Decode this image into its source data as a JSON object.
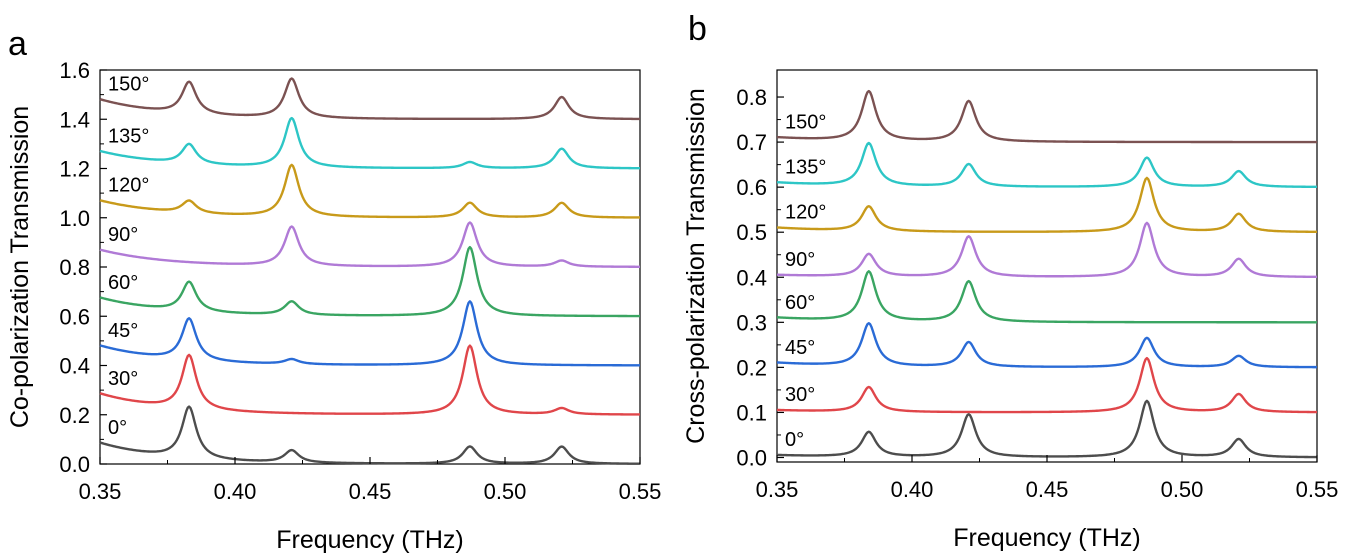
{
  "chart_data": [
    {
      "panel": "a",
      "type": "line",
      "xlabel": "Frequency (THz)",
      "ylabel": "Co-polarization Transmission",
      "xlim": [
        0.35,
        0.55
      ],
      "ylim": [
        0.0,
        1.6
      ],
      "xticks": [
        "0.35",
        "0.40",
        "0.45",
        "0.50",
        "0.55"
      ],
      "yticks": [
        "0.0",
        "0.2",
        "0.4",
        "0.6",
        "0.8",
        "1.0",
        "1.2",
        "1.4",
        "1.6"
      ],
      "grid": false,
      "series": [
        {
          "name": "0°",
          "color": "#4d4d4d",
          "baseline": 0.0,
          "start": 0.085,
          "peaks": [
            [
              0.383,
              0.21
            ],
            [
              0.421,
              0.05
            ],
            [
              0.487,
              0.07
            ],
            [
              0.521,
              0.07
            ]
          ]
        },
        {
          "name": "30°",
          "color": "#e0464a",
          "baseline": 0.2,
          "start": 0.285,
          "peaks": [
            [
              0.383,
              0.42
            ],
            [
              0.487,
              0.48
            ],
            [
              0.521,
              0.225
            ]
          ]
        },
        {
          "name": "45°",
          "color": "#2a6bd6",
          "baseline": 0.4,
          "start": 0.48,
          "peaks": [
            [
              0.383,
              0.57
            ],
            [
              0.421,
              0.42
            ],
            [
              0.487,
              0.66
            ]
          ]
        },
        {
          "name": "60°",
          "color": "#3aa562",
          "baseline": 0.6,
          "start": 0.675,
          "peaks": [
            [
              0.383,
              0.72
            ],
            [
              0.421,
              0.655
            ],
            [
              0.487,
              0.88
            ]
          ]
        },
        {
          "name": "90°",
          "color": "#b07ad6",
          "baseline": 0.8,
          "start": 0.87,
          "peaks": [
            [
              0.421,
              0.96
            ],
            [
              0.487,
              0.98
            ],
            [
              0.521,
              0.825
            ]
          ]
        },
        {
          "name": "120°",
          "color": "#c89a1a",
          "baseline": 1.0,
          "start": 1.07,
          "peaks": [
            [
              0.383,
              1.05
            ],
            [
              0.421,
              1.21
            ],
            [
              0.487,
              1.06
            ],
            [
              0.521,
              1.06
            ]
          ]
        },
        {
          "name": "135°",
          "color": "#2dc6c6",
          "baseline": 1.2,
          "start": 1.27,
          "peaks": [
            [
              0.383,
              1.28
            ],
            [
              0.421,
              1.4
            ],
            [
              0.487,
              1.225
            ],
            [
              0.521,
              1.28
            ]
          ]
        },
        {
          "name": "150°",
          "color": "#7b5252",
          "baseline": 1.4,
          "start": 1.48,
          "peaks": [
            [
              0.383,
              1.53
            ],
            [
              0.421,
              1.56
            ],
            [
              0.521,
              1.49
            ]
          ]
        }
      ]
    },
    {
      "panel": "b",
      "type": "line",
      "xlabel": "Frequency (THz)",
      "ylabel": "Cross-polarization Transmission",
      "xlim": [
        0.35,
        0.55
      ],
      "ylim": [
        -0.01,
        0.86
      ],
      "xticks": [
        "0.35",
        "0.40",
        "0.45",
        "0.50",
        "0.55"
      ],
      "yticks": [
        "0.0",
        "0.1",
        "0.2",
        "0.3",
        "0.4",
        "0.5",
        "0.6",
        "0.7",
        "0.8"
      ],
      "grid": false,
      "series": [
        {
          "name": "0°",
          "color": "#4d4d4d",
          "baseline": 0.0,
          "start": 0.005,
          "peaks": [
            [
              0.384,
              0.055
            ],
            [
              0.421,
              0.095
            ],
            [
              0.487,
              0.125
            ],
            [
              0.521,
              0.04
            ]
          ]
        },
        {
          "name": "30°",
          "color": "#e0464a",
          "baseline": 0.1,
          "start": 0.105,
          "peaks": [
            [
              0.384,
              0.155
            ],
            [
              0.487,
              0.22
            ],
            [
              0.521,
              0.14
            ]
          ]
        },
        {
          "name": "45°",
          "color": "#2a6bd6",
          "baseline": 0.2,
          "start": 0.21,
          "peaks": [
            [
              0.384,
              0.295
            ],
            [
              0.421,
              0.255
            ],
            [
              0.487,
              0.265
            ],
            [
              0.521,
              0.225
            ]
          ]
        },
        {
          "name": "60°",
          "color": "#3aa562",
          "baseline": 0.3,
          "start": 0.31,
          "peaks": [
            [
              0.384,
              0.41
            ],
            [
              0.421,
              0.39
            ]
          ]
        },
        {
          "name": "90°",
          "color": "#b07ad6",
          "baseline": 0.4,
          "start": 0.405,
          "peaks": [
            [
              0.384,
              0.45
            ],
            [
              0.421,
              0.49
            ],
            [
              0.487,
              0.52
            ],
            [
              0.521,
              0.44
            ]
          ]
        },
        {
          "name": "120°",
          "color": "#c89a1a",
          "baseline": 0.5,
          "start": 0.51,
          "peaks": [
            [
              0.384,
              0.555
            ],
            [
              0.487,
              0.62
            ],
            [
              0.521,
              0.54
            ]
          ]
        },
        {
          "name": "135°",
          "color": "#2dc6c6",
          "baseline": 0.6,
          "start": 0.61,
          "peaks": [
            [
              0.384,
              0.695
            ],
            [
              0.421,
              0.65
            ],
            [
              0.487,
              0.665
            ],
            [
              0.521,
              0.635
            ]
          ]
        },
        {
          "name": "150°",
          "color": "#7b5252",
          "baseline": 0.7,
          "start": 0.71,
          "peaks": [
            [
              0.384,
              0.81
            ],
            [
              0.421,
              0.79
            ]
          ]
        }
      ]
    }
  ]
}
